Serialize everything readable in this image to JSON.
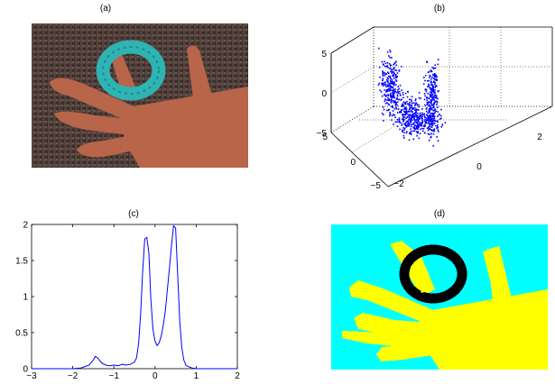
{
  "figure": {
    "panels": [
      {
        "id": "a",
        "label": "(a)"
      },
      {
        "id": "b",
        "label": "(b)"
      },
      {
        "id": "c",
        "label": "(c)"
      },
      {
        "id": "d",
        "label": "(d)"
      }
    ]
  },
  "colors": {
    "blue_series": "#0000ff",
    "segment_background": "#00ffff",
    "segment_hand": "#ffff00",
    "segment_ring": "#000000",
    "ring_cyan": "#2fb3b3",
    "skin": "#b8654a",
    "background_dark": "#4b3a35"
  },
  "chart_data": [
    {
      "panel": "(a)",
      "type": "image",
      "description_icon": "hand-with-ring-photo"
    },
    {
      "panel": "(b)",
      "type": "scatter3d",
      "title": "(b)",
      "z_ticks": [
        "5",
        "0",
        "−5"
      ],
      "x_ticks": [
        "5",
        "0",
        "−5"
      ],
      "y_ticks": [
        "−2",
        "0",
        "2"
      ],
      "xlim": [
        -5,
        5
      ],
      "ylim": [
        -2,
        4
      ],
      "zlim": [
        -5,
        5
      ],
      "grid": true,
      "color": "#0000ff"
    },
    {
      "panel": "(c)",
      "type": "line",
      "title": "(c)",
      "xlim": [
        -3,
        2
      ],
      "ylim": [
        0,
        2
      ],
      "x_ticks": [
        "−3",
        "−2",
        "−1",
        "0",
        "1",
        "2"
      ],
      "y_ticks": [
        "0",
        "0.5",
        "1",
        "1.5",
        "2"
      ],
      "x_tick_values": [
        -3,
        -2,
        -1,
        0,
        1,
        2
      ],
      "y_tick_values": [
        0,
        0.5,
        1,
        1.5,
        2
      ],
      "series": [
        {
          "color": "#0000ff",
          "x": [
            -3.0,
            -2.5,
            -2.0,
            -1.8,
            -1.6,
            -1.5,
            -1.45,
            -1.4,
            -1.35,
            -1.3,
            -1.2,
            -1.1,
            -1.0,
            -0.9,
            -0.8,
            -0.7,
            -0.6,
            -0.5,
            -0.45,
            -0.4,
            -0.35,
            -0.3,
            -0.25,
            -0.2,
            -0.15,
            -0.1,
            -0.05,
            0.0,
            0.05,
            0.1,
            0.15,
            0.2,
            0.25,
            0.3,
            0.35,
            0.4,
            0.45,
            0.5,
            0.55,
            0.6,
            0.65,
            0.7,
            0.75,
            0.8,
            0.85,
            0.9,
            1.0,
            1.2,
            1.5,
            2.0
          ],
          "y": [
            0.0,
            0.0,
            0.0,
            0.01,
            0.05,
            0.12,
            0.17,
            0.15,
            0.12,
            0.08,
            0.05,
            0.04,
            0.05,
            0.04,
            0.06,
            0.05,
            0.06,
            0.09,
            0.15,
            0.35,
            0.75,
            1.35,
            1.8,
            1.82,
            1.6,
            0.95,
            0.55,
            0.38,
            0.32,
            0.36,
            0.45,
            0.6,
            0.8,
            1.1,
            1.4,
            1.7,
            1.98,
            1.95,
            1.3,
            0.65,
            0.3,
            0.12,
            0.05,
            0.03,
            0.02,
            0.01,
            0.0,
            0.0,
            0.0,
            0.0
          ]
        }
      ]
    },
    {
      "panel": "(d)",
      "type": "image",
      "description_icon": "segmentation-map"
    }
  ]
}
